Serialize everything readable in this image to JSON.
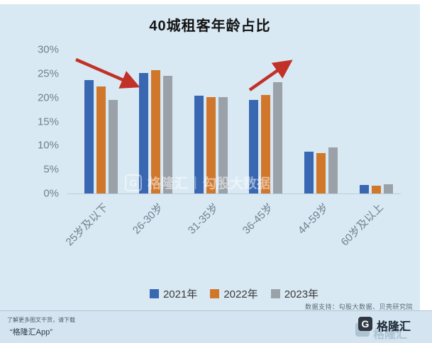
{
  "title": "40城租客年龄占比",
  "chart_data": {
    "type": "bar",
    "title": "40城租客年龄占比",
    "categories": [
      "25岁及以下",
      "26-30岁",
      "31-35岁",
      "36-45岁",
      "44-59岁",
      "60岁及以上"
    ],
    "series": [
      {
        "name": "2021年",
        "color": "#3a67b1",
        "values": [
          23.7,
          25.1,
          20.4,
          19.5,
          8.7,
          1.8
        ]
      },
      {
        "name": "2022年",
        "color": "#d1772b",
        "values": [
          22.3,
          25.7,
          20.1,
          20.6,
          8.5,
          1.7
        ]
      },
      {
        "name": "2023年",
        "color": "#9ba1a8",
        "values": [
          19.5,
          24.5,
          20.1,
          23.2,
          9.6,
          2.0
        ]
      }
    ],
    "unit": "%",
    "ylim": [
      0,
      30
    ],
    "yticks": [
      "30%",
      "25%",
      "20%",
      "15%",
      "10%",
      "5%",
      "0%"
    ],
    "grid": false,
    "legend_position": "bottom",
    "annotations": [
      {
        "type": "arrow",
        "color": "#c23128",
        "direction": "down-right",
        "target": "26-30岁"
      },
      {
        "type": "arrow",
        "color": "#c23128",
        "direction": "up-right",
        "target": "36-45岁"
      }
    ]
  },
  "watermark": {
    "g_letter": "G",
    "brand": "格隆汇",
    "divider": "|",
    "product": "勾股大数据"
  },
  "footer": {
    "data_support": "数据支持：勾股大数据、贝壳研究院",
    "promo_line1": "了解更多图文干货，请下载",
    "promo_line2": "“格隆汇App”",
    "logo_letter": "G",
    "logo_text": "格隆汇"
  },
  "colors": {
    "background": "#d9e9f4",
    "accent_blue": "#3a67b1",
    "accent_orange": "#d1772b",
    "accent_gray": "#9ba1a8",
    "arrow_red": "#c23128"
  }
}
